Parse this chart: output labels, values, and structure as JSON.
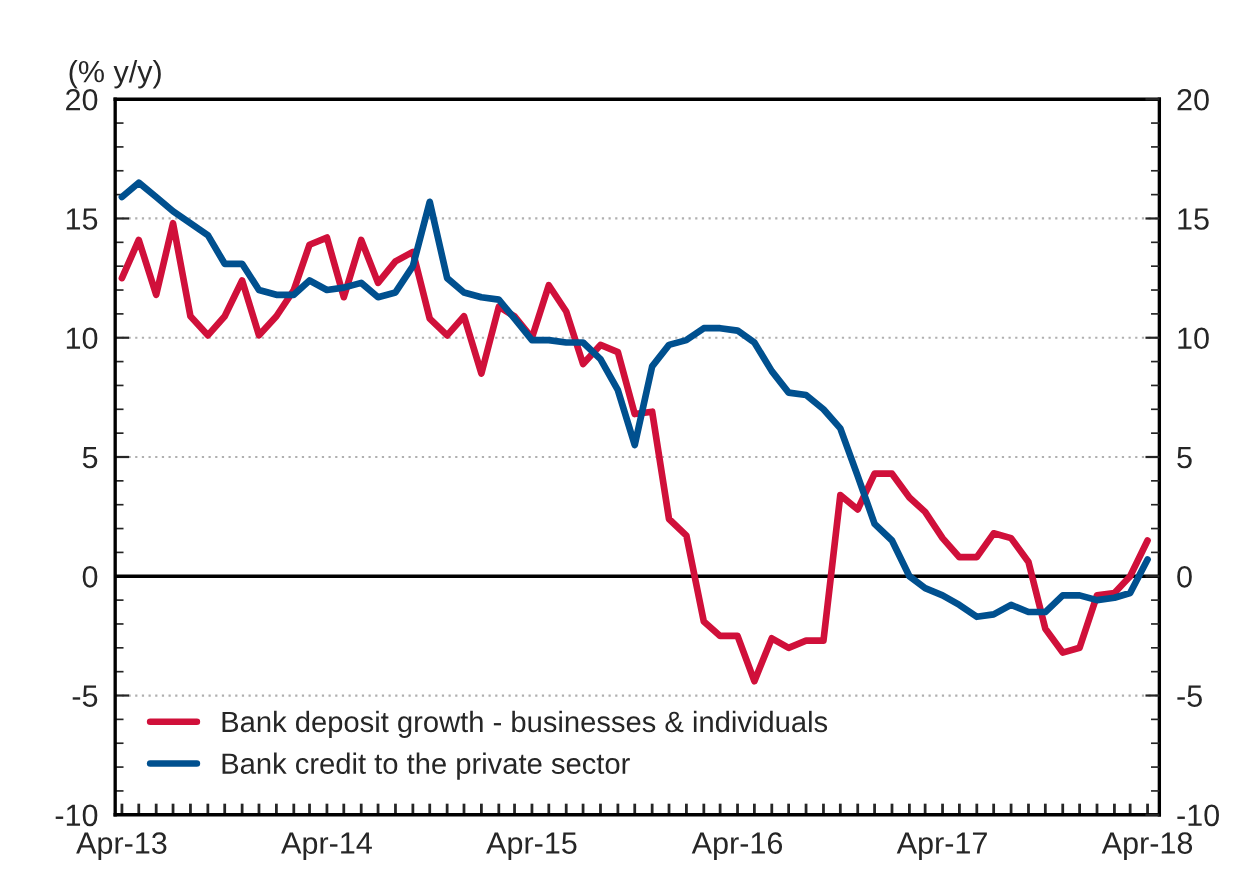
{
  "chart_data": {
    "type": "line",
    "ylabel": "(% y/y)",
    "x": [
      "2013-04",
      "2013-05",
      "2013-06",
      "2013-07",
      "2013-08",
      "2013-09",
      "2013-10",
      "2013-11",
      "2013-12",
      "2014-01",
      "2014-02",
      "2014-03",
      "2014-04",
      "2014-05",
      "2014-06",
      "2014-07",
      "2014-08",
      "2014-09",
      "2014-10",
      "2014-11",
      "2014-12",
      "2015-01",
      "2015-02",
      "2015-03",
      "2015-04",
      "2015-05",
      "2015-06",
      "2015-07",
      "2015-08",
      "2015-09",
      "2015-10",
      "2015-11",
      "2015-12",
      "2016-01",
      "2016-02",
      "2016-03",
      "2016-04",
      "2016-05",
      "2016-06",
      "2016-07",
      "2016-08",
      "2016-09",
      "2016-10",
      "2016-11",
      "2016-12",
      "2017-01",
      "2017-02",
      "2017-03",
      "2017-04",
      "2017-05",
      "2017-06",
      "2017-07",
      "2017-08",
      "2017-09",
      "2017-10",
      "2017-11",
      "2017-12",
      "2018-01",
      "2018-02",
      "2018-03",
      "2018-04"
    ],
    "series": [
      {
        "name": "Bank deposit growth - businesses & individuals",
        "color": "#d0103a",
        "values": [
          12.5,
          14.1,
          11.8,
          14.8,
          10.9,
          10.1,
          10.9,
          12.4,
          10.1,
          10.9,
          12.0,
          13.9,
          14.2,
          11.7,
          14.1,
          12.3,
          13.2,
          13.6,
          10.8,
          10.1,
          10.9,
          8.5,
          11.3,
          10.9,
          10.0,
          12.2,
          11.1,
          8.9,
          9.7,
          9.4,
          6.8,
          6.9,
          2.4,
          1.7,
          -1.9,
          -2.5,
          -2.5,
          -4.4,
          -2.6,
          -3.0,
          -2.7,
          -2.7,
          3.4,
          2.8,
          4.3,
          4.3,
          3.3,
          2.7,
          1.6,
          0.8,
          0.8,
          1.8,
          1.6,
          0.6,
          -2.2,
          -3.2,
          -3.0,
          -0.8,
          -0.7,
          0.0,
          1.5
        ]
      },
      {
        "name": "Bank credit to the private sector",
        "color": "#00508f",
        "values": [
          15.9,
          16.5,
          15.9,
          15.3,
          14.8,
          14.3,
          13.1,
          13.1,
          12.0,
          11.8,
          11.8,
          12.4,
          12.0,
          12.1,
          12.3,
          11.7,
          11.9,
          13.0,
          15.7,
          12.5,
          11.9,
          11.7,
          11.6,
          10.8,
          9.9,
          9.9,
          9.8,
          9.8,
          9.1,
          7.8,
          5.5,
          8.8,
          9.7,
          9.9,
          10.4,
          10.4,
          10.3,
          9.8,
          8.6,
          7.7,
          7.6,
          7.0,
          6.2,
          4.2,
          2.2,
          1.5,
          0.0,
          -0.5,
          -0.8,
          -1.2,
          -1.7,
          -1.6,
          -1.2,
          -1.5,
          -1.5,
          -0.8,
          -0.8,
          -1.0,
          -0.9,
          -0.7,
          0.7
        ]
      }
    ],
    "xlim": [
      "2013-03-20",
      "2018-04-22"
    ],
    "xticks": [
      {
        "value": "2013-04",
        "label": "Apr-13"
      },
      {
        "value": "2014-04",
        "label": "Apr-14"
      },
      {
        "value": "2015-04",
        "label": "Apr-15"
      },
      {
        "value": "2016-04",
        "label": "Apr-16"
      },
      {
        "value": "2017-04",
        "label": "Apr-17"
      },
      {
        "value": "2018-04",
        "label": "Apr-18"
      }
    ],
    "ylim": [
      -10,
      20
    ],
    "yticks": [
      -10,
      -5,
      0,
      5,
      10,
      15,
      20
    ],
    "y2lim": [
      -10,
      20
    ],
    "y2ticks": [
      -10,
      -5,
      0,
      5,
      10,
      15,
      20
    ],
    "ref_lines": [
      {
        "axis": "y",
        "value": 0,
        "color": "#000000"
      }
    ],
    "grid": "y",
    "legend": "bottom left",
    "line_style": "solid",
    "marker": "none"
  }
}
